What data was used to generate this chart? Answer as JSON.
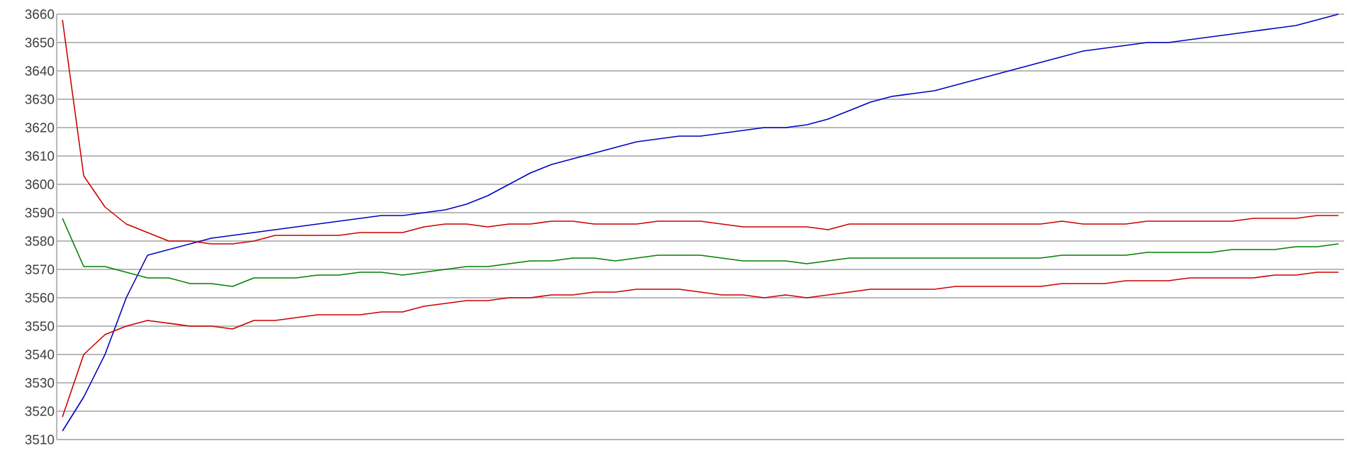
{
  "chart_data": {
    "type": "line",
    "categories": [
      null,
      null,
      null,
      null,
      null,
      null,
      null,
      null,
      null,
      null,
      null,
      null,
      null,
      null,
      null,
      null,
      null,
      null,
      null,
      null,
      null,
      null,
      null,
      null,
      null,
      null,
      null,
      null,
      null,
      null,
      null,
      null,
      null,
      null,
      null,
      null,
      null,
      null,
      null,
      null,
      null,
      null,
      null,
      null,
      null,
      null,
      null,
      null,
      null,
      null,
      null,
      null,
      null,
      null,
      null,
      null,
      null,
      null,
      null,
      null,
      null
    ],
    "series": [
      {
        "color": "#0000c0",
        "values": [
          3513,
          3525,
          3540,
          3560,
          3575,
          3577,
          3579,
          3581,
          3582,
          3583,
          3584,
          3585,
          3586,
          3587,
          3588,
          3589,
          3589,
          3590,
          3591,
          3593,
          3596,
          3600,
          3604,
          3607,
          3609,
          3611,
          3613,
          3615,
          3616,
          3617,
          3617,
          3618,
          3619,
          3620,
          3620,
          3621,
          3623,
          3626,
          3629,
          3631,
          3632,
          3633,
          3635,
          3637,
          3639,
          3641,
          3643,
          3645,
          3647,
          3648,
          3649,
          3650,
          3650,
          3651,
          3652,
          3653,
          3654,
          3655,
          3656,
          3658,
          3660
        ]
      },
      {
        "color": "#cc0000",
        "values": [
          3658,
          3603,
          3592,
          3586,
          3583,
          3580,
          3580,
          3579,
          3579,
          3580,
          3582,
          3582,
          3582,
          3582,
          3583,
          3583,
          3583,
          3585,
          3586,
          3586,
          3585,
          3586,
          3586,
          3587,
          3587,
          3586,
          3586,
          3586,
          3587,
          3587,
          3587,
          3586,
          3585,
          3585,
          3585,
          3585,
          3584,
          3586,
          3586,
          3586,
          3586,
          3586,
          3586,
          3586,
          3586,
          3586,
          3586,
          3587,
          3586,
          3586,
          3586,
          3587,
          3587,
          3587,
          3587,
          3587,
          3588,
          3588,
          3588,
          3589,
          3589
        ]
      },
      {
        "color": "#008000",
        "values": [
          3588,
          3571,
          3571,
          3569,
          3567,
          3567,
          3565,
          3565,
          3564,
          3567,
          3567,
          3567,
          3568,
          3568,
          3569,
          3569,
          3568,
          3569,
          3570,
          3571,
          3571,
          3572,
          3573,
          3573,
          3574,
          3574,
          3573,
          3574,
          3575,
          3575,
          3575,
          3574,
          3573,
          3573,
          3573,
          3572,
          3573,
          3574,
          3574,
          3574,
          3574,
          3574,
          3574,
          3574,
          3574,
          3574,
          3574,
          3575,
          3575,
          3575,
          3575,
          3576,
          3576,
          3576,
          3576,
          3577,
          3577,
          3577,
          3578,
          3578,
          3579
        ]
      },
      {
        "color": "#cc0000",
        "values": [
          3518,
          3540,
          3547,
          3550,
          3552,
          3551,
          3550,
          3550,
          3549,
          3552,
          3552,
          3553,
          3554,
          3554,
          3554,
          3555,
          3555,
          3557,
          3558,
          3559,
          3559,
          3560,
          3560,
          3561,
          3561,
          3562,
          3562,
          3563,
          3563,
          3563,
          3562,
          3561,
          3561,
          3560,
          3561,
          3560,
          3561,
          3562,
          3563,
          3563,
          3563,
          3563,
          3564,
          3564,
          3564,
          3564,
          3564,
          3565,
          3565,
          3565,
          3566,
          3566,
          3566,
          3567,
          3567,
          3567,
          3567,
          3568,
          3568,
          3569,
          3569
        ]
      }
    ],
    "ylim": [
      3510,
      3660
    ],
    "yticks": [
      3510,
      3520,
      3530,
      3540,
      3550,
      3560,
      3570,
      3580,
      3590,
      3600,
      3610,
      3620,
      3630,
      3640,
      3650,
      3660
    ],
    "grid": "y",
    "marker": "none",
    "line_style": "solid"
  }
}
